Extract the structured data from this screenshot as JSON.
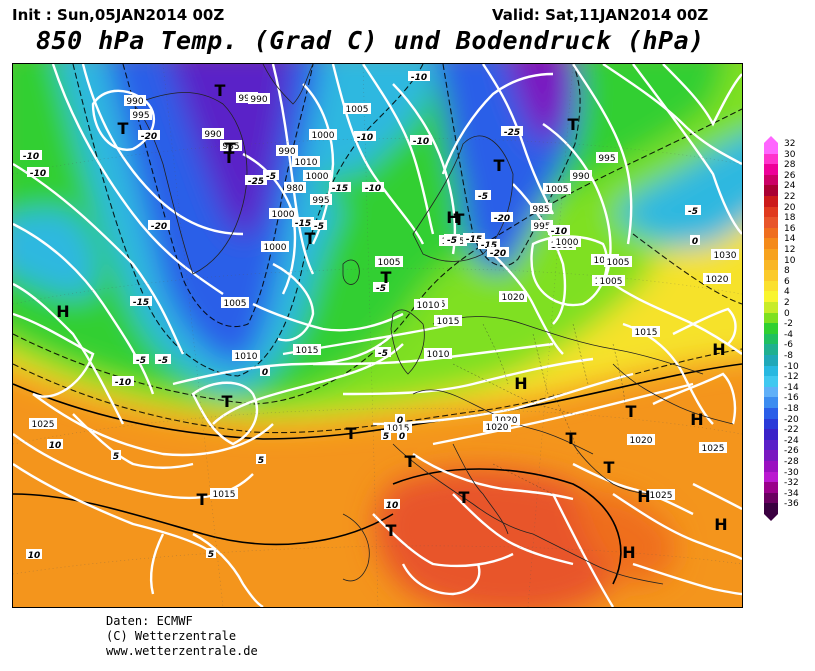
{
  "header": {
    "init": "Init : Sun,05JAN2014 00Z",
    "valid": "Valid: Sat,11JAN2014 00Z",
    "title": "850 hPa Temp. (Grad C) und Bodendruck (hPa)"
  },
  "legend": {
    "labels": [
      "32",
      "30",
      "28",
      "26",
      "24",
      "22",
      "20",
      "18",
      "16",
      "14",
      "12",
      "10",
      "8",
      "6",
      "4",
      "2",
      "0",
      "-2",
      "-4",
      "-6",
      "-8",
      "-10",
      "-12",
      "-14",
      "-16",
      "-18",
      "-20",
      "-22",
      "-24",
      "-26",
      "-28",
      "-30",
      "-32",
      "-34",
      "-36"
    ],
    "colors": [
      "#ff66ff",
      "#ff33cc",
      "#ee0099",
      "#cc0066",
      "#aa0033",
      "#cc1a1a",
      "#e03a1e",
      "#e8552a",
      "#ef6e1e",
      "#f48a1a",
      "#f7a21e",
      "#f9b626",
      "#fbca2a",
      "#fbe02e",
      "#f9f52e",
      "#c8ec28",
      "#7ee020",
      "#30d030",
      "#20c060",
      "#20b090",
      "#20a8b8",
      "#28b8e0",
      "#40c8f0",
      "#60b0f8",
      "#3c8cf0",
      "#2a5ee8",
      "#2a3ad8",
      "#3a22c8",
      "#5a20c8",
      "#7a18c0",
      "#9a10c0",
      "#ba18d0",
      "#9a008a",
      "#6a0060",
      "#3a0040"
    ]
  },
  "map": {
    "isobar_labels": [
      {
        "t": "995"
      },
      {
        "t": "985"
      },
      {
        "t": "995"
      },
      {
        "t": "995"
      },
      {
        "t": "1020"
      },
      {
        "t": "1010"
      },
      {
        "t": "1005"
      },
      {
        "t": "1030"
      },
      {
        "t": "985"
      },
      {
        "t": "990"
      },
      {
        "t": "995"
      },
      {
        "t": "990"
      },
      {
        "t": "985"
      },
      {
        "t": "980"
      },
      {
        "t": "1000"
      },
      {
        "t": "995"
      },
      {
        "t": "990"
      },
      {
        "t": "1000"
      },
      {
        "t": "1005"
      },
      {
        "t": "990"
      },
      {
        "t": "990"
      },
      {
        "t": "1010"
      },
      {
        "t": "1000"
      },
      {
        "t": "1015"
      },
      {
        "t": "1000"
      },
      {
        "t": "1005"
      },
      {
        "t": "985"
      },
      {
        "t": "990"
      },
      {
        "t": "995"
      },
      {
        "t": "1030"
      },
      {
        "t": "1005"
      },
      {
        "t": "1015"
      },
      {
        "t": "1010"
      },
      {
        "t": "1000"
      },
      {
        "t": "995"
      },
      {
        "t": "1005"
      },
      {
        "t": "1010"
      },
      {
        "t": "1015"
      },
      {
        "t": "1020"
      },
      {
        "t": "1005"
      },
      {
        "t": "1010"
      },
      {
        "t": "1015"
      },
      {
        "t": "1005"
      },
      {
        "t": "1010"
      },
      {
        "t": "1015"
      },
      {
        "t": "1025"
      },
      {
        "t": "1020"
      },
      {
        "t": "1020"
      },
      {
        "t": "1015"
      },
      {
        "t": "1025"
      },
      {
        "t": "1025"
      },
      {
        "t": "1020"
      },
      {
        "t": "1015"
      },
      {
        "t": "1020"
      },
      {
        "t": "1000"
      },
      {
        "t": "1005"
      }
    ],
    "temp_labels": [
      {
        "t": "-20"
      },
      {
        "t": "-25"
      },
      {
        "t": "-5"
      },
      {
        "t": "-20"
      },
      {
        "t": "-5"
      },
      {
        "t": "-10"
      },
      {
        "t": "-10"
      },
      {
        "t": "-25"
      },
      {
        "t": "-10"
      },
      {
        "t": "-20"
      },
      {
        "t": "-15"
      },
      {
        "t": "-10"
      },
      {
        "t": "-20"
      },
      {
        "t": "-15"
      },
      {
        "t": "-5"
      },
      {
        "t": "-15"
      },
      {
        "t": "-5"
      },
      {
        "t": "-10"
      },
      {
        "t": "-15"
      },
      {
        "t": "-10"
      },
      {
        "t": "-5"
      },
      {
        "t": "0"
      },
      {
        "t": "0"
      },
      {
        "t": "0"
      },
      {
        "t": "5"
      },
      {
        "t": "5"
      },
      {
        "t": "10"
      },
      {
        "t": "10"
      },
      {
        "t": "10"
      },
      {
        "t": "5"
      },
      {
        "t": "-5"
      },
      {
        "t": "-5"
      },
      {
        "t": "-5"
      },
      {
        "t": "-15"
      },
      {
        "t": "-20"
      },
      {
        "t": "-10"
      },
      {
        "t": "-5"
      },
      {
        "t": "0"
      },
      {
        "t": "-5"
      },
      {
        "t": "-10"
      },
      {
        "t": "-20"
      },
      {
        "t": "-25"
      },
      {
        "t": "-5"
      },
      {
        "t": "5"
      }
    ],
    "pressure_centers": [
      {
        "t": "T"
      },
      {
        "t": "T"
      },
      {
        "t": "T"
      },
      {
        "t": "T"
      },
      {
        "t": "T"
      },
      {
        "t": "T"
      },
      {
        "t": "T"
      },
      {
        "t": "T"
      },
      {
        "t": "T"
      },
      {
        "t": "T"
      },
      {
        "t": "T"
      },
      {
        "t": "T"
      },
      {
        "t": "T"
      },
      {
        "t": "T"
      },
      {
        "t": "T"
      },
      {
        "t": "T"
      },
      {
        "t": "T"
      },
      {
        "t": "T"
      },
      {
        "t": "H"
      },
      {
        "t": "H"
      },
      {
        "t": "H"
      },
      {
        "t": "H"
      },
      {
        "t": "H"
      },
      {
        "t": "H"
      },
      {
        "t": "H"
      },
      {
        "t": "H"
      }
    ]
  },
  "footer": {
    "line1": "Daten: ECMWF",
    "line2": "(C) Wetterzentrale",
    "line3": "www.wetterzentrale.de"
  }
}
